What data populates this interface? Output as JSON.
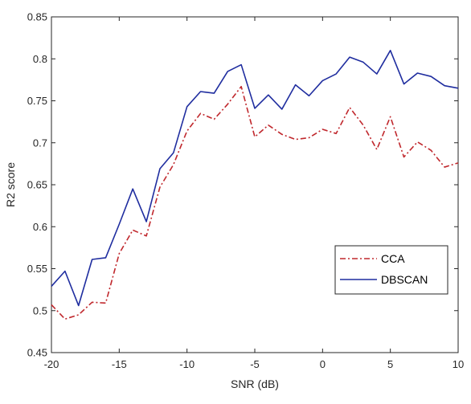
{
  "chart_data": {
    "type": "line",
    "title": "",
    "xlabel": "SNR (dB)",
    "ylabel": "R2 score",
    "xlim": [
      -20,
      10
    ],
    "ylim": [
      0.45,
      0.85
    ],
    "xticks": [
      -20,
      -15,
      -10,
      -5,
      0,
      5,
      10
    ],
    "xtick_labels": [
      "-20",
      "-15",
      "-10",
      "-5",
      "0",
      "5",
      "10"
    ],
    "yticks": [
      0.45,
      0.5,
      0.55,
      0.6,
      0.65,
      0.7,
      0.75,
      0.8,
      0.85
    ],
    "ytick_labels": [
      "0.45",
      "0.5",
      "0.55",
      "0.6",
      "0.65",
      "0.7",
      "0.75",
      "0.8",
      "0.85"
    ],
    "grid": false,
    "legend_position": "lower-right",
    "x": [
      -20,
      -19,
      -18,
      -17,
      -16,
      -15,
      -14,
      -13,
      -12,
      -11,
      -10,
      -9,
      -8,
      -7,
      -6,
      -5,
      -4,
      -3,
      -2,
      -1,
      0,
      1,
      2,
      3,
      4,
      5,
      6,
      7,
      8,
      9,
      10
    ],
    "series": [
      {
        "name": "CCA",
        "color": "#c0282d",
        "style": "dashdot",
        "values": [
          0.507,
          0.49,
          0.495,
          0.51,
          0.509,
          0.568,
          0.596,
          0.589,
          0.647,
          0.674,
          0.714,
          0.735,
          0.728,
          0.746,
          0.767,
          0.707,
          0.721,
          0.71,
          0.704,
          0.706,
          0.716,
          0.711,
          0.742,
          0.721,
          0.692,
          0.731,
          0.683,
          0.701,
          0.691,
          0.671,
          0.676
        ]
      },
      {
        "name": "DBSCAN",
        "color": "#1f2d9f",
        "style": "solid",
        "values": [
          0.529,
          0.547,
          0.506,
          0.561,
          0.563,
          0.603,
          0.645,
          0.606,
          0.669,
          0.688,
          0.743,
          0.761,
          0.759,
          0.785,
          0.793,
          0.741,
          0.757,
          0.74,
          0.769,
          0.756,
          0.774,
          0.782,
          0.802,
          0.796,
          0.782,
          0.81,
          0.77,
          0.783,
          0.779,
          0.768,
          0.765
        ]
      }
    ]
  }
}
